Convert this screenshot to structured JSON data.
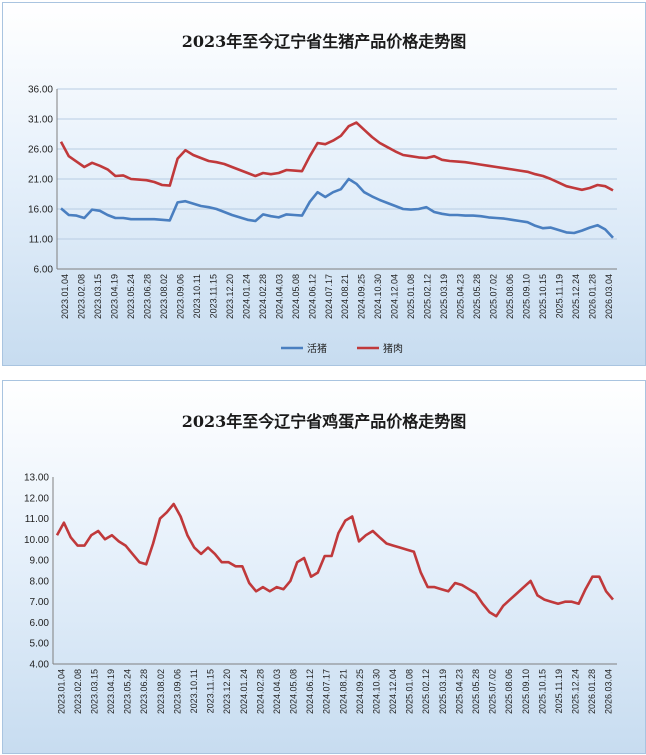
{
  "chart_data": [
    {
      "type": "line",
      "title": "2023年至今辽宁省生猪产品价格走势图",
      "ylim": [
        6,
        36
      ],
      "yticks": [
        "6.00",
        "11.00",
        "16.00",
        "21.00",
        "26.00",
        "31.00",
        "36.00"
      ],
      "x_tick_labels": [
        "2023.01.04",
        "2023.02.08",
        "2023.03.15",
        "2023.04.19",
        "2023.05.24",
        "2023.06.28",
        "2023.08.02",
        "2023.09.06",
        "2023.10.11",
        "2023.11.15",
        "2023.12.20",
        "2024.01.24",
        "2024.02.28",
        "2024.04.03",
        "2024.05.08",
        "2024.06.12",
        "2024.07.17",
        "2024.08.21",
        "2024.09.25",
        "2024.10.30",
        "2024.12.04",
        "2025.01.08",
        "2025.02.12",
        "2025.03.19",
        "2025.04.23",
        "2025.05.28",
        "2025.07.02",
        "2025.08.06",
        "2025.09.10",
        "2025.10.15",
        "2025.11.19",
        "2025.12.24",
        "2026.01.28",
        "2026.03.04"
      ],
      "grid": true,
      "legend_position": "bottom",
      "series": [
        {
          "name": "活猪",
          "color": "#4a7fc0",
          "values": [
            16.1,
            15.0,
            14.9,
            14.5,
            15.9,
            15.7,
            15.0,
            14.5,
            14.5,
            14.3,
            14.3,
            14.3,
            14.3,
            14.2,
            14.1,
            17.1,
            17.3,
            16.9,
            16.5,
            16.3,
            16.0,
            15.5,
            15.0,
            14.6,
            14.2,
            14.0,
            15.1,
            14.8,
            14.6,
            15.1,
            15.0,
            14.9,
            17.2,
            18.8,
            18.0,
            18.8,
            19.3,
            21.0,
            20.2,
            18.8,
            18.1,
            17.5,
            17.0,
            16.5,
            16.0,
            15.9,
            16.0,
            16.3,
            15.5,
            15.2,
            15.0,
            15.0,
            14.9,
            14.9,
            14.8,
            14.6,
            14.5,
            14.4,
            14.2,
            14.0,
            13.8,
            13.2,
            12.8,
            12.9,
            12.5,
            12.1,
            12.0,
            12.4,
            12.9,
            13.3,
            12.6,
            11.2
          ]
        },
        {
          "name": "猪肉",
          "color": "#c0393b",
          "values": [
            27.2,
            24.8,
            23.9,
            23.0,
            23.7,
            23.2,
            22.6,
            21.5,
            21.6,
            21.0,
            20.9,
            20.8,
            20.5,
            20.0,
            19.9,
            24.4,
            25.8,
            25.0,
            24.5,
            24.0,
            23.8,
            23.5,
            23.0,
            22.5,
            22.0,
            21.5,
            22.0,
            21.8,
            22.0,
            22.5,
            22.4,
            22.3,
            24.8,
            27.0,
            26.8,
            27.4,
            28.2,
            29.8,
            30.4,
            29.2,
            28.0,
            27.0,
            26.3,
            25.6,
            25.0,
            24.8,
            24.6,
            24.5,
            24.8,
            24.2,
            24.0,
            23.9,
            23.8,
            23.6,
            23.4,
            23.2,
            23.0,
            22.8,
            22.6,
            22.4,
            22.2,
            21.8,
            21.5,
            21.0,
            20.4,
            19.8,
            19.5,
            19.2,
            19.5,
            20.0,
            19.8,
            19.1
          ]
        }
      ]
    },
    {
      "type": "line",
      "title": "2023年至今辽宁省鸡蛋产品价格走势图",
      "ylim": [
        4,
        13
      ],
      "yticks": [
        "4.00",
        "5.00",
        "6.00",
        "7.00",
        "8.00",
        "9.00",
        "10.00",
        "11.00",
        "12.00",
        "13.00"
      ],
      "x_tick_labels": [
        "2023.01.04",
        "2023.02.08",
        "2023.03.15",
        "2023.04.19",
        "2023.05.24",
        "2023.06.28",
        "2023.08.02",
        "2023.09.06",
        "2023.10.11",
        "2023.11.15",
        "2023.12.20",
        "2024.01.24",
        "2024.02.28",
        "2024.04.03",
        "2024.05.08",
        "2024.06.12",
        "2024.07.17",
        "2024.08.21",
        "2024.09.25",
        "2024.10.30",
        "2024.12.04",
        "2025.01.08",
        "2025.02.12",
        "2025.03.19",
        "2025.04.23",
        "2025.05.28",
        "2025.07.02",
        "2025.08.06",
        "2025.09.10",
        "2025.10.15",
        "2025.11.19",
        "2025.12.24",
        "2026.01.28",
        "2026.03.04"
      ],
      "grid": false,
      "series": [
        {
          "name": "",
          "color": "#c0393b",
          "values": [
            10.2,
            10.8,
            10.1,
            9.7,
            9.7,
            10.2,
            10.4,
            10.0,
            10.2,
            9.9,
            9.7,
            9.3,
            8.9,
            8.8,
            9.8,
            11.0,
            11.3,
            11.7,
            11.1,
            10.2,
            9.6,
            9.3,
            9.6,
            9.3,
            8.9,
            8.9,
            8.7,
            8.7,
            7.9,
            7.5,
            7.7,
            7.5,
            7.7,
            7.6,
            8.0,
            8.9,
            9.1,
            8.2,
            8.4,
            9.2,
            9.2,
            10.3,
            10.9,
            11.1,
            9.9,
            10.2,
            10.4,
            10.1,
            9.8,
            9.7,
            9.6,
            9.5,
            9.4,
            8.4,
            7.7,
            7.7,
            7.6,
            7.5,
            7.9,
            7.8,
            7.6,
            7.4,
            6.9,
            6.5,
            6.3,
            6.8,
            7.1,
            7.4,
            7.7,
            8.0,
            7.3,
            7.1,
            7.0,
            6.9,
            7.0,
            7.0,
            6.9,
            7.6,
            8.2,
            8.2,
            7.5,
            7.1
          ]
        }
      ]
    }
  ]
}
